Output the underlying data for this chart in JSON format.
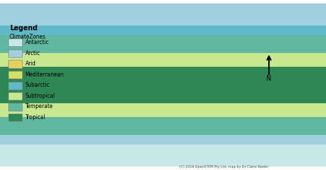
{
  "legend_title": "Legend",
  "legend_subtitle": "ClimateZones",
  "legend_entries": [
    {
      "label": "Antarctic",
      "color": "#c8e8e8"
    },
    {
      "label": "Arctic",
      "color": "#a0cfe0"
    },
    {
      "label": "Arid",
      "color": "#e8d060"
    },
    {
      "label": "Mediterranean",
      "color": "#d4e060"
    },
    {
      "label": "Subarctic",
      "color": "#60b8c8"
    },
    {
      "label": "Subtropical",
      "color": "#c8e890"
    },
    {
      "label": "Temperate",
      "color": "#60b8a0"
    },
    {
      "label": "Tropical",
      "color": "#2e8855"
    }
  ],
  "background_color": "#ffffff",
  "copyright_text": "(C) 2016 OpenSTEM Pty Ltd, map by Dr Claire Reeler"
}
